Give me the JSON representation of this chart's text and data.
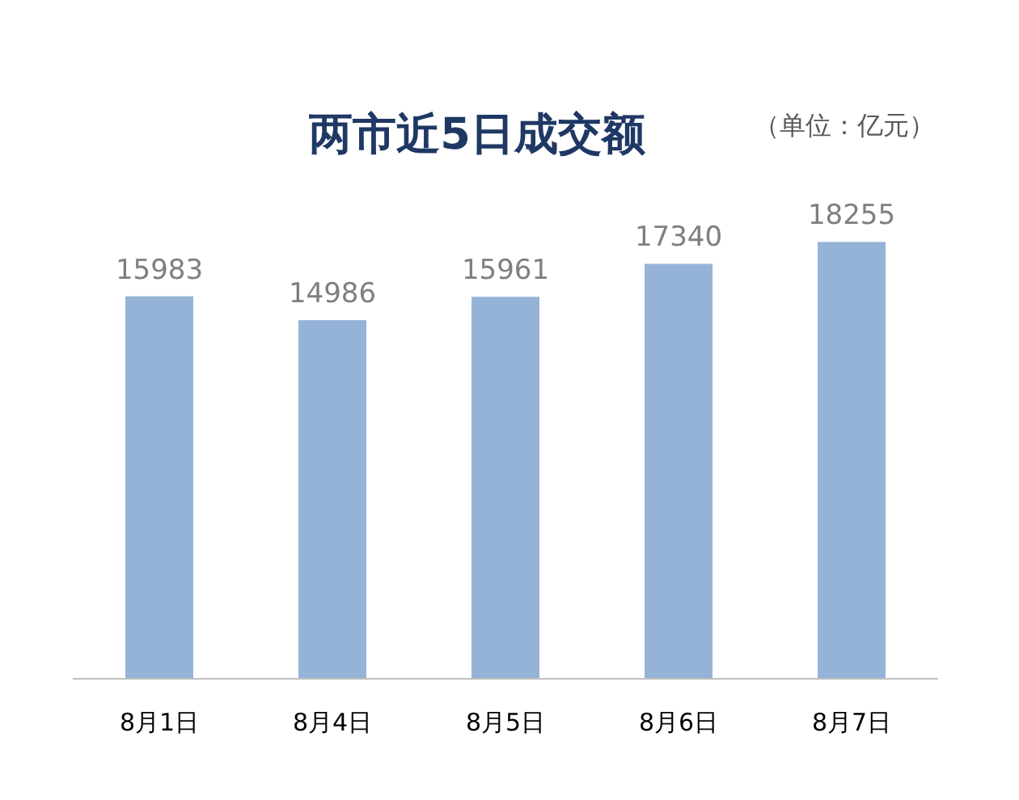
{
  "chart_data": {
    "type": "bar",
    "title": "两市近5日成交额",
    "subtitle": "（单位：亿元）",
    "categories": [
      "8月1日",
      "8月4日",
      "8月5日",
      "8月6日",
      "8月7日"
    ],
    "values": [
      15983,
      14986,
      15961,
      17340,
      18255
    ],
    "color": "#95b3d7",
    "data_labels": true
  }
}
